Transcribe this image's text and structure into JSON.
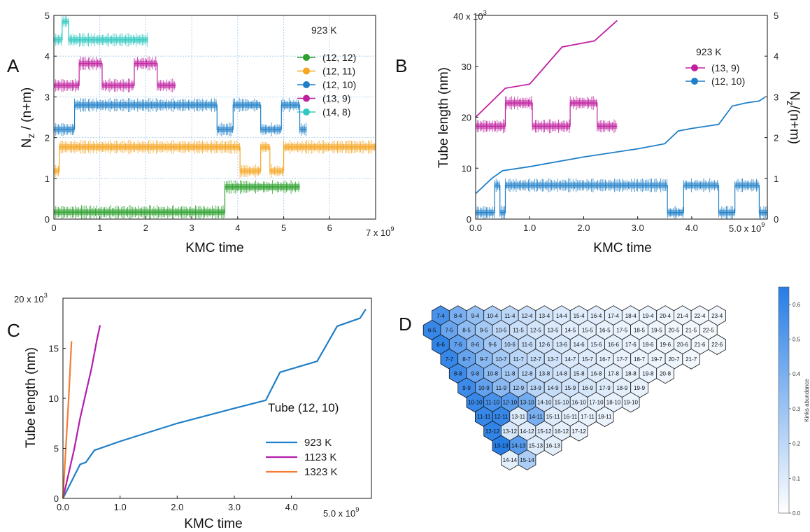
{
  "chart_data": [
    {
      "panel": "A",
      "type": "line",
      "xlabel": "KMC time",
      "ylabel": "N_z / (n+m)",
      "x_exponent": "7 x 10^9",
      "xlim": [
        0,
        7
      ],
      "ylim": [
        0,
        5
      ],
      "x_ticks": [
        "0",
        "1",
        "2",
        "3",
        "4",
        "5",
        "6"
      ],
      "y_ticks": [
        "0",
        "1",
        "2",
        "3",
        "4",
        "5"
      ],
      "grid": true,
      "legend": {
        "title": "923 K",
        "position": "top-right",
        "entries": [
          "(12, 12)",
          "(12, 11)",
          "(12, 10)",
          "(13, 9)",
          "(14, 8)"
        ]
      },
      "series": [
        {
          "name": "(12, 12)",
          "color": "#2ca02c",
          "steps": [
            [
              0,
              0.17
            ],
            [
              3.72,
              0.79
            ],
            [
              5.35,
              null
            ]
          ]
        },
        {
          "name": "(12, 11)",
          "color": "#f5a623",
          "steps": [
            [
              0,
              1.18
            ],
            [
              0.12,
              1.77
            ],
            [
              4.05,
              1.18
            ],
            [
              4.5,
              1.77
            ],
            [
              4.7,
              1.18
            ],
            [
              5.0,
              1.77
            ],
            [
              7.0,
              null
            ]
          ]
        },
        {
          "name": "(12, 10)",
          "color": "#1f7fc8",
          "steps": [
            [
              0,
              2.2
            ],
            [
              0.45,
              2.8
            ],
            [
              3.55,
              2.2
            ],
            [
              3.9,
              2.8
            ],
            [
              4.5,
              2.2
            ],
            [
              4.95,
              2.8
            ],
            [
              5.35,
              2.2
            ],
            [
              5.5,
              null
            ]
          ]
        },
        {
          "name": "(13, 9)",
          "color": "#c020a0",
          "steps": [
            [
              0,
              3.28
            ],
            [
              0.55,
              3.82
            ],
            [
              1.05,
              3.28
            ],
            [
              1.75,
              3.82
            ],
            [
              2.25,
              3.28
            ],
            [
              2.65,
              null
            ]
          ]
        },
        {
          "name": "(14, 8)",
          "color": "#30c8c0",
          "steps": [
            [
              0,
              4.4
            ],
            [
              0.18,
              4.85
            ],
            [
              0.32,
              4.4
            ],
            [
              2.05,
              null
            ]
          ]
        }
      ]
    },
    {
      "panel": "B",
      "type": "line",
      "xlabel": "KMC time",
      "ylabel": "Tube length (nm)",
      "ylabel_right": "N_z/(n+m)",
      "x_exponent": "5.0 x 10^9",
      "y_exponent": "40 x 10^3",
      "xlim": [
        0,
        5.4
      ],
      "ylim": [
        0,
        40000
      ],
      "ylim_right": [
        0,
        5
      ],
      "x_ticks": [
        "0.0",
        "1.0",
        "2.0",
        "3.0",
        "4.0"
      ],
      "y_ticks": [
        "0",
        "10",
        "20",
        "30"
      ],
      "y_ticks_right": [
        "0",
        "1",
        "2",
        "3",
        "4",
        "5"
      ],
      "legend": {
        "title": "923 K",
        "position": "top-right",
        "entries": [
          "(13, 9)",
          "(12, 10)"
        ]
      },
      "series": [
        {
          "name": "(13, 9)",
          "color": "#c020a0",
          "length": [
            [
              0,
              20000
            ],
            [
              0.55,
              25700
            ],
            [
              1.0,
              26500
            ],
            [
              1.6,
              33800
            ],
            [
              2.2,
              35000
            ],
            [
              2.62,
              39000
            ]
          ],
          "steps": [
            [
              0,
              2.28
            ],
            [
              0.55,
              2.85
            ],
            [
              1.05,
              2.28
            ],
            [
              1.75,
              2.85
            ],
            [
              2.25,
              2.28
            ],
            [
              2.62,
              null
            ]
          ]
        },
        {
          "name": "(12, 10)",
          "color": "#1f7fc8",
          "length": [
            [
              0,
              5000
            ],
            [
              0.3,
              8000
            ],
            [
              0.5,
              9500
            ],
            [
              1.0,
              10300
            ],
            [
              2.0,
              12200
            ],
            [
              3.0,
              13800
            ],
            [
              3.5,
              14800
            ],
            [
              3.75,
              17300
            ],
            [
              4.0,
              17800
            ],
            [
              4.5,
              18600
            ],
            [
              4.75,
              22200
            ],
            [
              5.0,
              22800
            ],
            [
              5.25,
              23200
            ],
            [
              5.35,
              23900
            ]
          ],
          "steps": [
            [
              0,
              0.16
            ],
            [
              0.35,
              0.83
            ],
            [
              0.45,
              0.16
            ],
            [
              0.55,
              0.83
            ],
            [
              3.55,
              0.16
            ],
            [
              3.85,
              0.83
            ],
            [
              4.5,
              0.16
            ],
            [
              4.8,
              0.83
            ],
            [
              5.25,
              0.16
            ],
            [
              5.4,
              null
            ]
          ]
        }
      ]
    },
    {
      "panel": "C",
      "type": "line",
      "xlabel": "KMC time",
      "ylabel": "Tube length (nm)",
      "x_exponent": "5.0 x 10^9",
      "y_exponent": "20 x 10^3",
      "xlim": [
        0,
        5.4
      ],
      "ylim": [
        0,
        20000
      ],
      "x_ticks": [
        "0.0",
        "1.0",
        "2.0",
        "3.0",
        "4.0"
      ],
      "y_ticks": [
        "0",
        "5",
        "10",
        "15"
      ],
      "annotation": "Tube (12, 10)",
      "legend": {
        "position": "bottom-right",
        "entries": [
          "923 K",
          "1123 K",
          "1323 K"
        ]
      },
      "series": [
        {
          "name": "923 K",
          "color": "#1f7fc8",
          "x": [
            0,
            0.3,
            0.4,
            0.55,
            1.0,
            2.0,
            3.0,
            3.55,
            3.8,
            4.45,
            4.8,
            5.2,
            5.3
          ],
          "y": [
            0,
            3400,
            3600,
            4800,
            5700,
            7500,
            9000,
            9800,
            12600,
            13700,
            17200,
            18000,
            18900
          ]
        },
        {
          "name": "1123 K",
          "color": "#b41cae",
          "x": [
            0,
            0.1,
            0.2,
            0.3,
            0.4,
            0.5,
            0.6,
            0.65
          ],
          "y": [
            0,
            2500,
            5000,
            8000,
            10500,
            13000,
            16000,
            17300
          ]
        },
        {
          "name": "1323 K",
          "color": "#f57c35",
          "x": [
            0,
            0.05,
            0.1,
            0.15
          ],
          "y": [
            0,
            5000,
            10000,
            15700
          ]
        }
      ]
    },
    {
      "panel": "D",
      "type": "heatmap",
      "colorbar_label": "Kinks abundance",
      "colorbar_ticks": [
        "0.0",
        "0.1",
        "0.2",
        "0.3",
        "0.4",
        "0.5",
        "0.6"
      ],
      "vmin": 0,
      "vmax": 0.65,
      "rows": [
        {
          "m": 4,
          "n_start": 7,
          "n_end": 23,
          "values": [
            0.55,
            0.4,
            0.32,
            0.25,
            0.2,
            0.16,
            0.13,
            0.11,
            0.1,
            0.09,
            0.08,
            0.07,
            0.06,
            0.05,
            0.05,
            0.04,
            0.04
          ]
        },
        {
          "m": 5,
          "n_start": 6,
          "n_end": 22,
          "values": [
            0.6,
            0.45,
            0.34,
            0.27,
            0.2,
            0.16,
            0.13,
            0.11,
            0.09,
            0.08,
            0.07,
            0.06,
            0.05,
            0.05,
            0.04,
            0.04,
            0.03
          ]
        },
        {
          "m": 6,
          "n_start": 6,
          "n_end": 22,
          "values": [
            0.62,
            0.48,
            0.36,
            0.28,
            0.22,
            0.17,
            0.14,
            0.12,
            0.1,
            0.09,
            0.08,
            0.07,
            0.06,
            0.05,
            0.05,
            0.04,
            0.04
          ]
        },
        {
          "m": 7,
          "n_start": 7,
          "n_end": 21,
          "values": [
            0.6,
            0.46,
            0.35,
            0.27,
            0.21,
            0.17,
            0.14,
            0.11,
            0.1,
            0.08,
            0.07,
            0.06,
            0.05,
            0.05,
            0.04
          ]
        },
        {
          "m": 8,
          "n_start": 8,
          "n_end": 20,
          "values": [
            0.58,
            0.45,
            0.34,
            0.27,
            0.21,
            0.17,
            0.14,
            0.12,
            0.1,
            0.08,
            0.07,
            0.06,
            0.05
          ]
        },
        {
          "m": 9,
          "n_start": 9,
          "n_end": 19,
          "values": [
            0.58,
            0.47,
            0.35,
            0.27,
            0.21,
            0.17,
            0.14,
            0.12,
            0.1,
            0.08,
            0.07
          ]
        },
        {
          "m": 10,
          "n_start": 10,
          "n_end": 19,
          "values": [
            0.6,
            0.55,
            0.5,
            0.42,
            0.15,
            0.12,
            0.1,
            0.08,
            0.07,
            0.06
          ]
        },
        {
          "m": 11,
          "n_start": 11,
          "n_end": 18,
          "values": [
            0.6,
            0.6,
            0.1,
            0.4,
            0.1,
            0.08,
            0.07,
            0.06
          ]
        },
        {
          "m": 12,
          "n_start": 12,
          "n_end": 17,
          "values": [
            0.62,
            0.12,
            0.1,
            0.09,
            0.08,
            0.07
          ]
        },
        {
          "m": 13,
          "n_start": 13,
          "n_end": 16,
          "values": [
            0.65,
            0.5,
            0.1,
            0.08
          ]
        },
        {
          "m": 14,
          "n_start": 14,
          "n_end": 15,
          "values": [
            0.08,
            0.25
          ]
        }
      ]
    }
  ],
  "panel_labels": [
    "A",
    "B",
    "C",
    "D"
  ]
}
